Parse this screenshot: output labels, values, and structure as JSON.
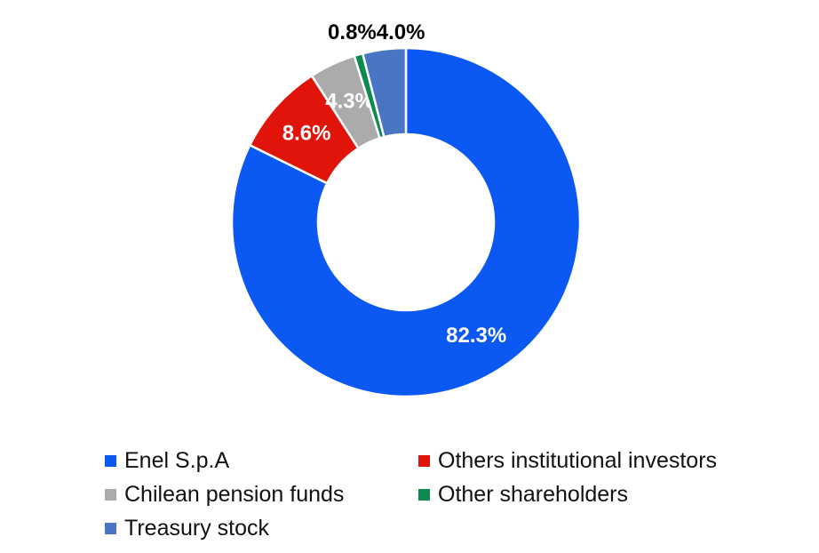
{
  "page": {
    "background_color": "#FFFFFF"
  },
  "chart_data": {
    "type": "pie",
    "subtype": "donut",
    "title": "",
    "direction": "clockwise",
    "start_angle_deg": 0,
    "donut_hole_ratio": 0.5,
    "legend_position": "bottom",
    "legend_columns": 2,
    "categories": [
      "Enel S.p.A",
      "Others institutional investors",
      "Chilean pension funds",
      "Other shareholders",
      "Treasury stock"
    ],
    "values": [
      82.3,
      8.6,
      4.3,
      0.8,
      4.0
    ],
    "slices": [
      {
        "name": "Enel S.p.A",
        "value": 82.3,
        "data_label": "82.3%",
        "color": "#0B58F2",
        "label_placement": "inside",
        "label_color": "#FFFFFF"
      },
      {
        "name": "Others institutional investors",
        "value": 8.6,
        "data_label": "8.6%",
        "color": "#E0140A",
        "label_placement": "inside",
        "label_color": "#FFFFFF"
      },
      {
        "name": "Chilean pension funds",
        "value": 4.3,
        "data_label": "4.3%",
        "color": "#ABABAB",
        "label_placement": "inside",
        "label_color": "#FFFFFF"
      },
      {
        "name": "Other shareholders",
        "value": 0.8,
        "data_label": "0.8%",
        "color": "#0C8A50",
        "label_placement": "outside",
        "label_color": "#000000"
      },
      {
        "name": "Treasury stock",
        "value": 4.0,
        "data_label": "4.0%",
        "color": "#4A74C4",
        "label_placement": "outside",
        "label_color": "#000000"
      }
    ],
    "slice_border_color": "#FFFFFF"
  }
}
